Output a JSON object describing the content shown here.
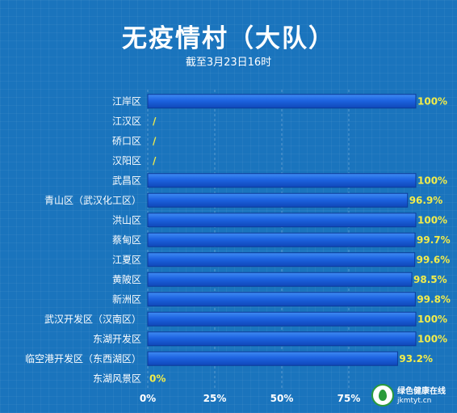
{
  "chart_data": {
    "type": "bar",
    "orientation": "horizontal",
    "title": "无疫情村（大队）",
    "subtitle": "截至3月23日16时",
    "categories": [
      "江岸区",
      "江汉区",
      "硚口区",
      "汉阳区",
      "武昌区",
      "青山区（武汉化工区）",
      "洪山区",
      "蔡甸区",
      "江夏区",
      "黄陂区",
      "新洲区",
      "武汉开发区（汉南区）",
      "东湖开发区",
      "临空港开发区（东西湖区）",
      "东湖风景区"
    ],
    "values": [
      100,
      null,
      null,
      null,
      100,
      96.9,
      100,
      99.7,
      99.6,
      98.5,
      99.8,
      100,
      100,
      93.2,
      0
    ],
    "value_labels": [
      "100%",
      "/",
      "/",
      "/",
      "100%",
      "96.9%",
      "100%",
      "99.7%",
      "99.6%",
      "98.5%",
      "99.8%",
      "100%",
      "100%",
      "93.2%",
      "0%"
    ],
    "x_ticks": [
      "0%",
      "25%",
      "50%",
      "75%"
    ],
    "xlim": [
      0,
      100
    ],
    "grid": "vertical dashed",
    "colors": {
      "bar": "#1d63e0",
      "bar_highlight": "#3f8cf3",
      "value_label": "#f2ec4a",
      "background": "#1a74bd"
    }
  },
  "watermark": {
    "text": "绿色健康在线",
    "url": "jkmtyt.cn"
  }
}
